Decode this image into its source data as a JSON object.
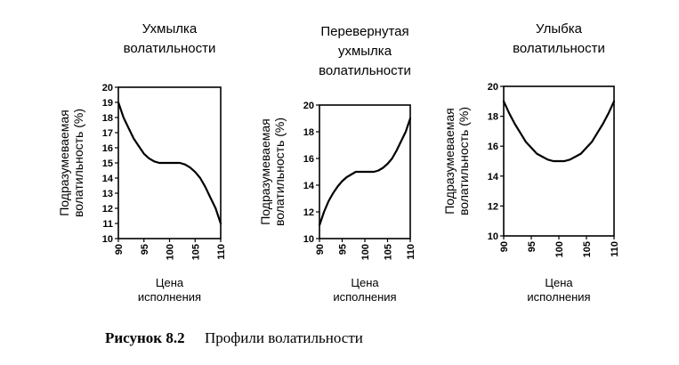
{
  "caption": {
    "number": "Рисунок 8.2",
    "text": "Профили волатильности"
  },
  "chart_data": [
    {
      "type": "line",
      "title": "Ухмылка волатильности",
      "title_lines": [
        "Ухмылка",
        "волатильности"
      ],
      "xlabel": "Цена исполнения",
      "xlabel_lines": [
        "Цена",
        "исполнения"
      ],
      "ylabel": "Подразумеваемая волатильность (%)",
      "ylabel_lines": [
        "Подразумеваемая",
        "волатильность (%)"
      ],
      "xlim": [
        90,
        110
      ],
      "ylim": [
        10,
        20
      ],
      "x_ticks": [
        90,
        95,
        100,
        105,
        110
      ],
      "y_ticks": [
        10,
        11,
        12,
        13,
        14,
        15,
        16,
        17,
        18,
        19,
        20
      ],
      "grid": false,
      "series": [
        {
          "x": [
            90,
            91,
            92,
            93,
            94,
            95,
            96,
            97,
            98,
            99,
            100,
            101,
            102,
            103,
            104,
            105,
            106,
            107,
            108,
            109,
            110
          ],
          "values": [
            19.0,
            18.0,
            17.3,
            16.6,
            16.1,
            15.6,
            15.3,
            15.1,
            15.0,
            15.0,
            15.0,
            15.0,
            15.0,
            14.9,
            14.7,
            14.4,
            14.0,
            13.4,
            12.7,
            12.0,
            11.0
          ]
        }
      ]
    },
    {
      "type": "line",
      "title": "Перевернутая ухмылка волатильности",
      "title_lines": [
        "Перевернутая",
        "ухмылка",
        "волатильности"
      ],
      "xlabel": "Цена исполнения",
      "xlabel_lines": [
        "Цена",
        "исполнения"
      ],
      "ylabel": "Подразумеваемая волатильность (%)",
      "ylabel_lines": [
        "Подразумеваемая",
        "волатильность (%)"
      ],
      "xlim": [
        90,
        110
      ],
      "ylim": [
        10,
        20
      ],
      "x_ticks": [
        90,
        95,
        100,
        105,
        110
      ],
      "y_ticks": [
        10,
        12,
        14,
        16,
        18,
        20
      ],
      "grid": false,
      "series": [
        {
          "x": [
            90,
            91,
            92,
            93,
            94,
            95,
            96,
            97,
            98,
            99,
            100,
            101,
            102,
            103,
            104,
            105,
            106,
            107,
            108,
            109,
            110
          ],
          "values": [
            11.0,
            12.0,
            12.8,
            13.4,
            13.9,
            14.3,
            14.6,
            14.8,
            15.0,
            15.0,
            15.0,
            15.0,
            15.0,
            15.1,
            15.3,
            15.6,
            16.0,
            16.6,
            17.3,
            18.0,
            19.0
          ]
        }
      ]
    },
    {
      "type": "line",
      "title": "Улыбка волатильности",
      "title_lines": [
        "Улыбка",
        "волатильности"
      ],
      "xlabel": "Цена исполнения",
      "xlabel_lines": [
        "Цена",
        "исполнения"
      ],
      "ylabel": "Подразумеваемая волатильность (%)",
      "ylabel_lines": [
        "Подразумеваемая",
        "волатильность (%)"
      ],
      "xlim": [
        90,
        110
      ],
      "ylim": [
        10,
        20
      ],
      "x_ticks": [
        90,
        95,
        100,
        105,
        110
      ],
      "y_ticks": [
        10,
        12,
        14,
        16,
        18,
        20
      ],
      "grid": false,
      "series": [
        {
          "x": [
            90,
            91,
            92,
            93,
            94,
            95,
            96,
            97,
            98,
            99,
            100,
            101,
            102,
            103,
            104,
            105,
            106,
            107,
            108,
            109,
            110
          ],
          "values": [
            19.0,
            18.2,
            17.5,
            16.9,
            16.3,
            15.9,
            15.5,
            15.3,
            15.1,
            15.0,
            15.0,
            15.0,
            15.1,
            15.3,
            15.5,
            15.9,
            16.3,
            16.9,
            17.5,
            18.2,
            19.0
          ]
        }
      ]
    }
  ]
}
